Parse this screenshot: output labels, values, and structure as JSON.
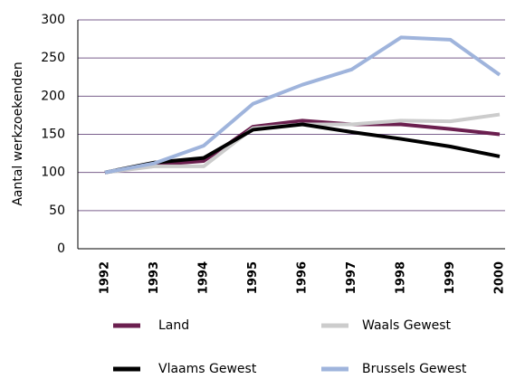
{
  "chart_data": {
    "type": "line",
    "y_label": "Aantal werkzoekenden",
    "x": [
      1992,
      1993,
      1994,
      1995,
      1996,
      1997,
      1998,
      1999,
      2000
    ],
    "series": [
      {
        "name": "Land",
        "color": "#6b1f4f",
        "values": [
          100,
          110,
          115,
          160,
          168,
          163,
          163,
          157,
          150
        ]
      },
      {
        "name": "Waals Gewest",
        "color": "#cccccc",
        "values": [
          100,
          108,
          108,
          158,
          163,
          163,
          168,
          167,
          176
        ]
      },
      {
        "name": "Vlaams Gewest",
        "color": "#000000",
        "values": [
          100,
          113,
          119,
          156,
          163,
          153,
          144,
          134,
          121
        ]
      },
      {
        "name": "Brussels Gewest",
        "color": "#9fb4dc",
        "values": [
          100,
          112,
          135,
          190,
          215,
          235,
          277,
          274,
          228
        ]
      }
    ],
    "ylim": [
      0,
      300
    ],
    "yticks": [
      0,
      50,
      100,
      150,
      200,
      250,
      300
    ],
    "grid": true
  }
}
